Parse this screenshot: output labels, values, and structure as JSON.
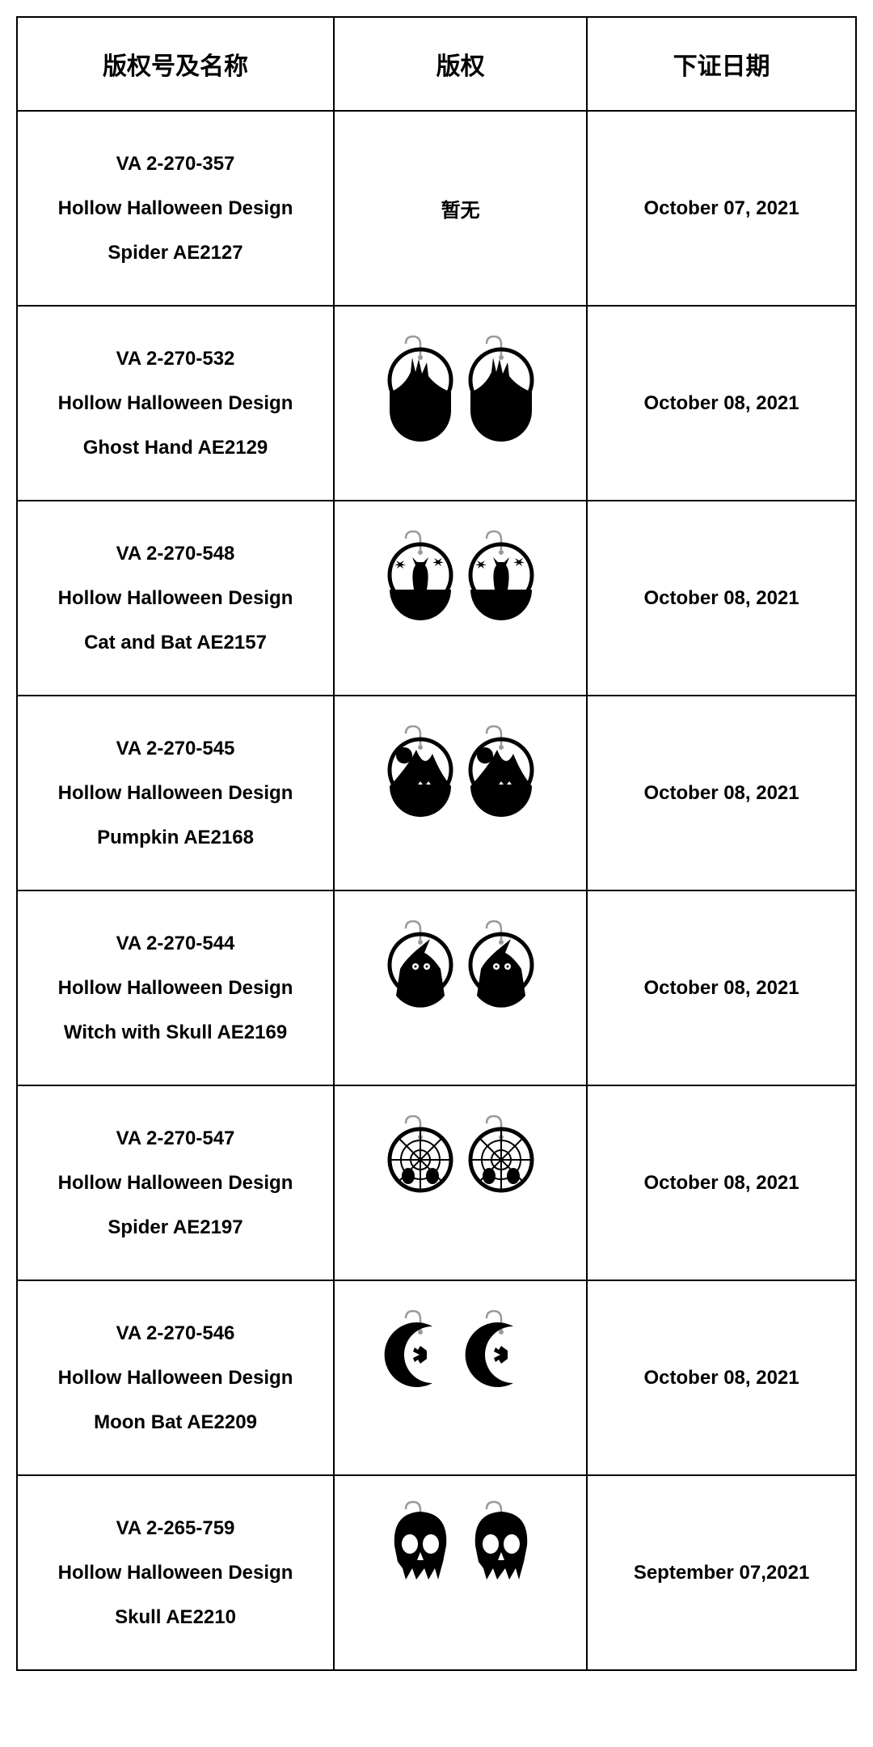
{
  "headers": {
    "name": "版权号及名称",
    "image": "版权",
    "date": "下证日期"
  },
  "noImageText": "暂无",
  "rows": [
    {
      "code": "VA 2-270-357",
      "line2": "Hollow Halloween Design",
      "line3": "Spider AE2127",
      "date": "October 07, 2021",
      "design": "none"
    },
    {
      "code": "VA 2-270-532",
      "line2": "Hollow Halloween Design",
      "line3": "Ghost Hand AE2129",
      "date": "October 08, 2021",
      "design": "ghosthand"
    },
    {
      "code": "VA 2-270-548",
      "line2": "Hollow Halloween Design",
      "line3": "Cat and Bat AE2157",
      "date": "October 08, 2021",
      "design": "catbat"
    },
    {
      "code": "VA 2-270-545",
      "line2": "Hollow Halloween Design",
      "line3": "Pumpkin AE2168",
      "date": "October 08, 2021",
      "design": "pumpkin"
    },
    {
      "code": "VA 2-270-544",
      "line2": "Hollow Halloween Design",
      "line3": "Witch with Skull AE2169",
      "date": "October 08, 2021",
      "design": "witch"
    },
    {
      "code": "VA 2-270-547",
      "line2": "Hollow Halloween Design",
      "line3": "Spider AE2197",
      "date": "October 08, 2021",
      "design": "spiderweb"
    },
    {
      "code": "VA 2-270-546",
      "line2": "Hollow Halloween Design",
      "line3": "Moon Bat AE2209",
      "date": "October 08, 2021",
      "design": "moonbat"
    },
    {
      "code": "VA 2-265-759",
      "line2": "Hollow Halloween Design",
      "line3": "Skull AE2210",
      "date": "September 07,2021",
      "design": "skull"
    }
  ],
  "colors": {
    "border": "#000000",
    "text": "#000000",
    "bg": "#ffffff",
    "silhouette": "#000000",
    "hook": "#9a9a9a"
  }
}
